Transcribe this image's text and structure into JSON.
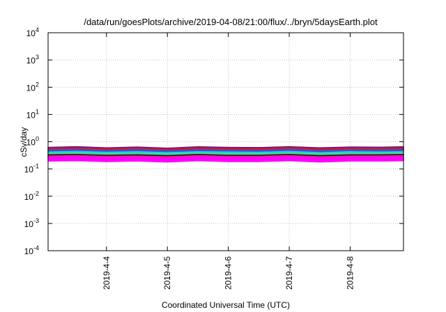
{
  "chart_data": {
    "type": "area",
    "title": "/data/run/goesPlots/archive/2019-04-08/21:00/flux/../bryn/5daysEarth.plot",
    "xlabel": "Coordinated Universal Time (UTC)",
    "ylabel": "cSv/day",
    "yscale": "log",
    "ylim": [
      0.0001,
      10000
    ],
    "xlim": [
      "2019-04-03 01:00",
      "2019-04-08 21:00"
    ],
    "grid": true,
    "x_ticks": [
      {
        "date": "2019-04-04 00:00",
        "label": "2019-4-4"
      },
      {
        "date": "2019-04-05 00:00",
        "label": "2019-4-5"
      },
      {
        "date": "2019-04-06 00:00",
        "label": "2019-4-6"
      },
      {
        "date": "2019-04-07 00:00",
        "label": "2019-4-7"
      },
      {
        "date": "2019-04-08 00:00",
        "label": "2019-4-8"
      }
    ],
    "y_ticks": [
      {
        "value": 0.0001,
        "base": "10",
        "exp": "-4"
      },
      {
        "value": 0.001,
        "base": "10",
        "exp": "-3"
      },
      {
        "value": 0.01,
        "base": "10",
        "exp": "-2"
      },
      {
        "value": 0.1,
        "base": "10",
        "exp": "-1"
      },
      {
        "value": 1,
        "base": "10",
        "exp": "0"
      },
      {
        "value": 10,
        "base": "10",
        "exp": "1"
      },
      {
        "value": 100,
        "base": "10",
        "exp": "2"
      },
      {
        "value": 1000,
        "base": "10",
        "exp": "3"
      },
      {
        "value": 10000,
        "base": "10",
        "exp": "4"
      }
    ],
    "series": [
      {
        "color": "#6a0d83",
        "x": [
          "2019-04-03 01:00",
          "2019-04-03 12:00",
          "2019-04-04 00:00",
          "2019-04-04 12:00",
          "2019-04-05 00:00",
          "2019-04-05 12:00",
          "2019-04-06 00:00",
          "2019-04-06 12:00",
          "2019-04-07 00:00",
          "2019-04-07 12:00",
          "2019-04-08 00:00",
          "2019-04-08 12:00",
          "2019-04-08 21:00"
        ],
        "values": [
          0.62,
          0.66,
          0.6,
          0.64,
          0.58,
          0.65,
          0.62,
          0.61,
          0.66,
          0.6,
          0.64,
          0.63,
          0.65
        ]
      },
      {
        "color": "#d0182a",
        "x": [
          "2019-04-03 01:00",
          "2019-04-03 12:00",
          "2019-04-04 00:00",
          "2019-04-04 12:00",
          "2019-04-05 00:00",
          "2019-04-05 12:00",
          "2019-04-06 00:00",
          "2019-04-06 12:00",
          "2019-04-07 00:00",
          "2019-04-07 12:00",
          "2019-04-08 00:00",
          "2019-04-08 12:00",
          "2019-04-08 21:00"
        ],
        "values": [
          0.58,
          0.6,
          0.56,
          0.59,
          0.54,
          0.6,
          0.57,
          0.56,
          0.61,
          0.55,
          0.59,
          0.58,
          0.6
        ]
      },
      {
        "color": "#3a4fd8",
        "x": [
          "2019-04-03 01:00",
          "2019-04-03 12:00",
          "2019-04-04 00:00",
          "2019-04-04 12:00",
          "2019-04-05 00:00",
          "2019-04-05 12:00",
          "2019-04-06 00:00",
          "2019-04-06 12:00",
          "2019-04-07 00:00",
          "2019-04-07 12:00",
          "2019-04-08 00:00",
          "2019-04-08 12:00",
          "2019-04-08 21:00"
        ],
        "values": [
          0.5,
          0.52,
          0.48,
          0.51,
          0.47,
          0.51,
          0.49,
          0.48,
          0.52,
          0.47,
          0.5,
          0.5,
          0.51
        ]
      },
      {
        "color": "#2cc4e8",
        "x": [
          "2019-04-03 01:00",
          "2019-04-03 12:00",
          "2019-04-04 00:00",
          "2019-04-04 12:00",
          "2019-04-05 00:00",
          "2019-04-05 12:00",
          "2019-04-06 00:00",
          "2019-04-06 12:00",
          "2019-04-07 00:00",
          "2019-04-07 12:00",
          "2019-04-08 00:00",
          "2019-04-08 12:00",
          "2019-04-08 21:00"
        ],
        "values": [
          0.42,
          0.44,
          0.41,
          0.43,
          0.4,
          0.43,
          0.42,
          0.41,
          0.44,
          0.4,
          0.43,
          0.42,
          0.43
        ]
      },
      {
        "color": "#38e08a",
        "x": [
          "2019-04-03 01:00",
          "2019-04-03 12:00",
          "2019-04-04 00:00",
          "2019-04-04 12:00",
          "2019-04-05 00:00",
          "2019-04-05 12:00",
          "2019-04-06 00:00",
          "2019-04-06 12:00",
          "2019-04-07 00:00",
          "2019-04-07 12:00",
          "2019-04-08 00:00",
          "2019-04-08 12:00",
          "2019-04-08 21:00"
        ],
        "values": [
          0.38,
          0.39,
          0.37,
          0.38,
          0.36,
          0.39,
          0.37,
          0.37,
          0.39,
          0.36,
          0.38,
          0.38,
          0.39
        ]
      },
      {
        "color": "#1a1a1a",
        "x": [
          "2019-04-03 01:00",
          "2019-04-03 12:00",
          "2019-04-04 00:00",
          "2019-04-04 12:00",
          "2019-04-05 00:00",
          "2019-04-05 12:00",
          "2019-04-06 00:00",
          "2019-04-06 12:00",
          "2019-04-07 00:00",
          "2019-04-07 12:00",
          "2019-04-08 00:00",
          "2019-04-08 12:00",
          "2019-04-08 21:00"
        ],
        "values": [
          0.33,
          0.34,
          0.32,
          0.33,
          0.31,
          0.34,
          0.32,
          0.32,
          0.34,
          0.31,
          0.33,
          0.33,
          0.34
        ]
      },
      {
        "color": "#ff1493",
        "x": [
          "2019-04-03 01:00",
          "2019-04-03 12:00",
          "2019-04-04 00:00",
          "2019-04-04 12:00",
          "2019-04-05 00:00",
          "2019-04-05 12:00",
          "2019-04-06 00:00",
          "2019-04-06 12:00",
          "2019-04-07 00:00",
          "2019-04-07 12:00",
          "2019-04-08 00:00",
          "2019-04-08 12:00",
          "2019-04-08 21:00"
        ],
        "values": [
          0.3,
          0.31,
          0.29,
          0.3,
          0.28,
          0.31,
          0.29,
          0.29,
          0.31,
          0.28,
          0.3,
          0.3,
          0.31
        ]
      },
      {
        "color": "#ff00ff",
        "x": [
          "2019-04-03 01:00",
          "2019-04-03 12:00",
          "2019-04-04 00:00",
          "2019-04-04 12:00",
          "2019-04-05 00:00",
          "2019-04-05 12:00",
          "2019-04-06 00:00",
          "2019-04-06 12:00",
          "2019-04-07 00:00",
          "2019-04-07 12:00",
          "2019-04-08 00:00",
          "2019-04-08 12:00",
          "2019-04-08 21:00"
        ],
        "values": [
          0.27,
          0.28,
          0.26,
          0.27,
          0.25,
          0.28,
          0.26,
          0.26,
          0.28,
          0.25,
          0.27,
          0.27,
          0.28
        ]
      }
    ]
  }
}
